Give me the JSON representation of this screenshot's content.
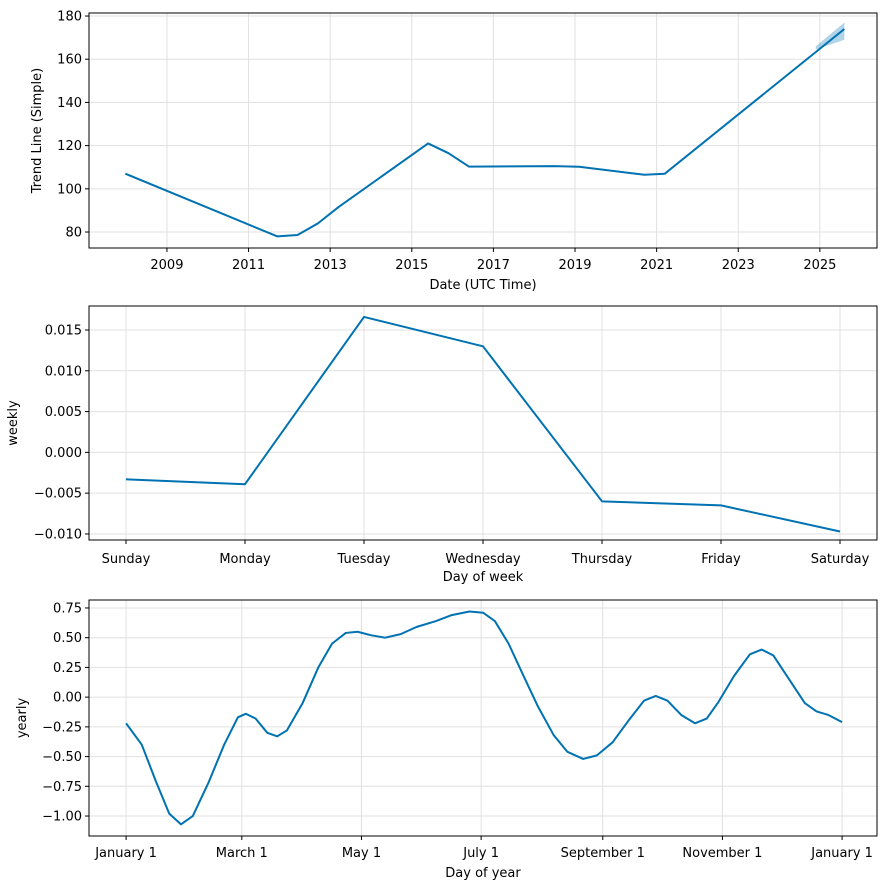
{
  "chart_data": [
    {
      "type": "line",
      "y_label": "Trend Line (Simple)",
      "x_label": "Date (UTC Time)",
      "color": "#0072b2",
      "grid": true,
      "x": [
        2007.98,
        2011.7,
        2012.2,
        2012.7,
        2013.2,
        2015.4,
        2015.9,
        2016.4,
        2018.5,
        2019.1,
        2020.7,
        2021.2,
        2025.6
      ],
      "values": [
        107,
        78,
        78.6,
        84,
        91.5,
        121,
        116.5,
        110.3,
        110.5,
        110.2,
        106.5,
        107,
        174
      ],
      "band": {
        "x": [
          2024.9,
          2025.6
        ],
        "lower": [
          164.5,
          169
        ],
        "upper": [
          166,
          177
        ]
      },
      "xlim": [
        2007.09,
        2026.4
      ],
      "xticks": [
        2009,
        2011,
        2013,
        2015,
        2017,
        2019,
        2021,
        2023,
        2025
      ],
      "ylim": [
        72.6,
        181.4
      ],
      "yticks": [
        80,
        100,
        120,
        140,
        160,
        180
      ]
    },
    {
      "type": "line",
      "y_label": "weekly",
      "x_label": "Day of week",
      "color": "#0072b2",
      "grid": true,
      "categories": [
        "Sunday",
        "Monday",
        "Tuesday",
        "Wednesday",
        "Thursday",
        "Friday",
        "Saturday"
      ],
      "values": [
        -0.0033,
        -0.0039,
        0.0166,
        0.013,
        -0.006,
        -0.0065,
        -0.0097
      ],
      "ylim": [
        -0.01074,
        0.01794
      ],
      "yticks": [
        {
          "value": -0.01,
          "label": "−0.010"
        },
        {
          "value": -0.005,
          "label": "−0.005"
        },
        {
          "value": 0,
          "label": "0.000"
        },
        {
          "value": 0.005,
          "label": "0.005"
        },
        {
          "value": 0.01,
          "label": "0.010"
        },
        {
          "value": 0.015,
          "label": "0.015"
        }
      ]
    },
    {
      "type": "line",
      "y_label": "yearly",
      "x_label": "Day of year",
      "color": "#0072b2",
      "grid": true,
      "x": [
        0,
        8,
        15,
        22,
        28,
        34,
        42,
        50,
        57,
        61,
        66,
        72,
        77,
        82,
        90,
        98,
        105,
        112,
        118,
        125,
        132,
        140,
        148,
        158,
        166,
        175,
        182,
        188,
        195,
        202,
        210,
        218,
        225,
        233,
        240,
        248,
        256,
        264,
        270,
        276,
        283,
        290,
        296,
        302,
        310,
        318,
        324,
        330,
        338,
        346,
        352,
        358,
        365
      ],
      "values": [
        -0.22,
        -0.4,
        -0.7,
        -0.98,
        -1.07,
        -1.0,
        -0.72,
        -0.4,
        -0.17,
        -0.14,
        -0.18,
        -0.3,
        -0.33,
        -0.28,
        -0.05,
        0.25,
        0.45,
        0.54,
        0.55,
        0.52,
        0.5,
        0.53,
        0.59,
        0.64,
        0.69,
        0.72,
        0.71,
        0.64,
        0.45,
        0.2,
        -0.08,
        -0.32,
        -0.46,
        -0.52,
        -0.49,
        -0.38,
        -0.2,
        -0.03,
        0.01,
        -0.03,
        -0.15,
        -0.22,
        -0.18,
        -0.04,
        0.18,
        0.36,
        0.4,
        0.35,
        0.15,
        -0.05,
        -0.12,
        -0.15,
        -0.21
      ],
      "xlim": [
        -18.9,
        382.8
      ],
      "xticks": [
        {
          "value": 0,
          "label": "January 1"
        },
        {
          "value": 59,
          "label": "March 1"
        },
        {
          "value": 120,
          "label": "May 1"
        },
        {
          "value": 181,
          "label": "July 1"
        },
        {
          "value": 243,
          "label": "September 1"
        },
        {
          "value": 304,
          "label": "November 1"
        },
        {
          "value": 365,
          "label": "January 1"
        }
      ],
      "ylim": [
        -1.168,
        0.817
      ],
      "yticks": [
        {
          "value": -1,
          "label": "−1.00"
        },
        {
          "value": -0.75,
          "label": "−0.75"
        },
        {
          "value": -0.5,
          "label": "−0.50"
        },
        {
          "value": -0.25,
          "label": "−0.25"
        },
        {
          "value": 0,
          "label": "0.00"
        },
        {
          "value": 0.25,
          "label": "0.25"
        },
        {
          "value": 0.5,
          "label": "0.50"
        },
        {
          "value": 0.75,
          "label": "0.75"
        }
      ]
    }
  ]
}
